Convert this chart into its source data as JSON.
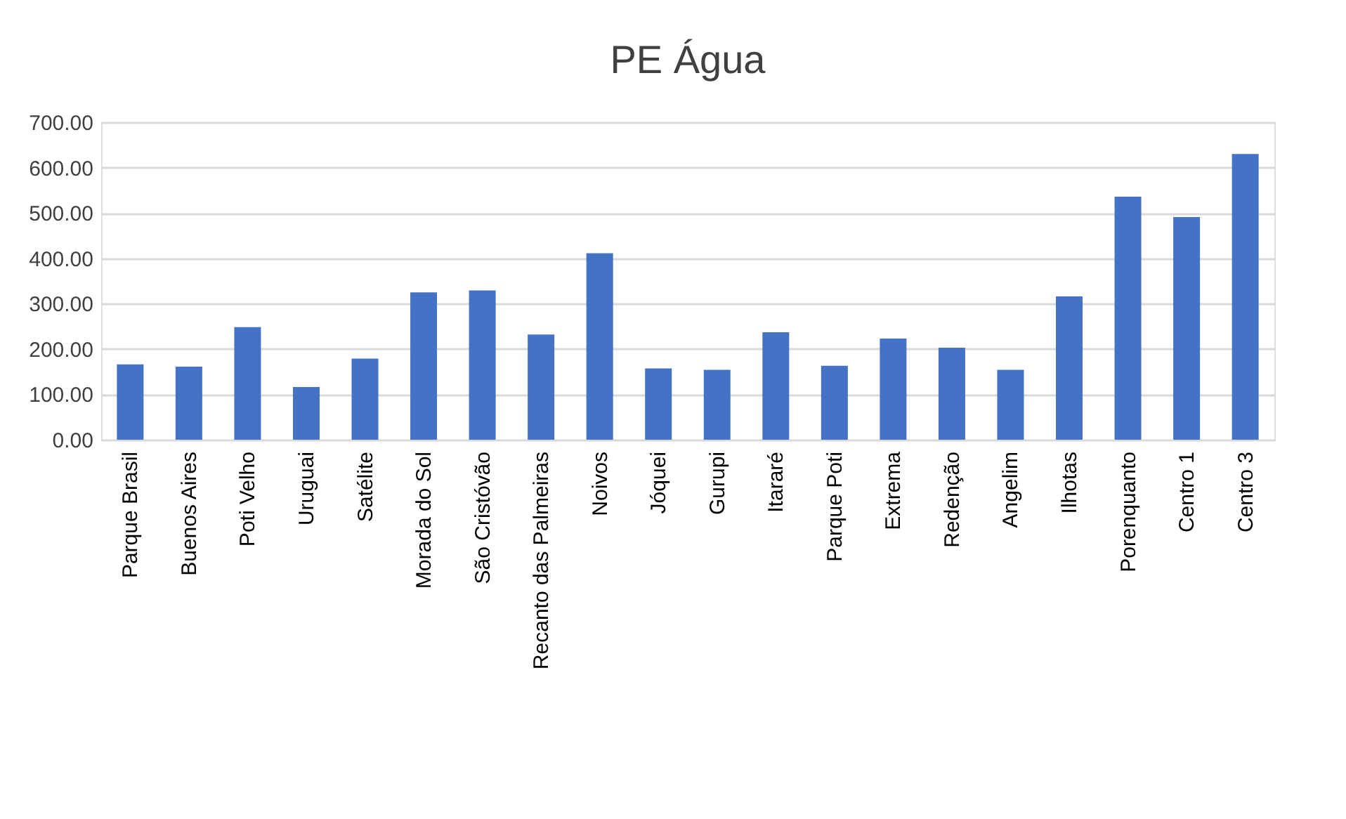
{
  "chart_data": {
    "type": "bar",
    "title": "PE Água",
    "categories": [
      "Parque Brasil",
      "Buenos Aires",
      "Poti Velho",
      "Uruguai",
      "Satélite",
      "Morada do Sol",
      "São Cristóvão",
      "Recanto das Palmeiras",
      "Noivos",
      "Jóquei",
      "Gurupi",
      "Itararé",
      "Parque Poti",
      "Extrema",
      "Redenção",
      "Angelim",
      "Ilhotas",
      "Porenquanto",
      "Centro 1",
      "Centro 3"
    ],
    "values": [
      166,
      161,
      248,
      116,
      179,
      325,
      329,
      232,
      411,
      157,
      154,
      237,
      163,
      223,
      203,
      154,
      316,
      536,
      491,
      630
    ],
    "color": "#4472c4",
    "ylim": [
      0,
      700
    ],
    "yticks": [
      {
        "value": 0,
        "label": "0.00"
      },
      {
        "value": 100,
        "label": "100.00"
      },
      {
        "value": 200,
        "label": "200.00"
      },
      {
        "value": 300,
        "label": "300.00"
      },
      {
        "value": 400,
        "label": "400.00"
      },
      {
        "value": 500,
        "label": "500.00"
      },
      {
        "value": 600,
        "label": "600.00"
      },
      {
        "value": 700,
        "label": "700.00"
      }
    ],
    "grid": "y"
  }
}
